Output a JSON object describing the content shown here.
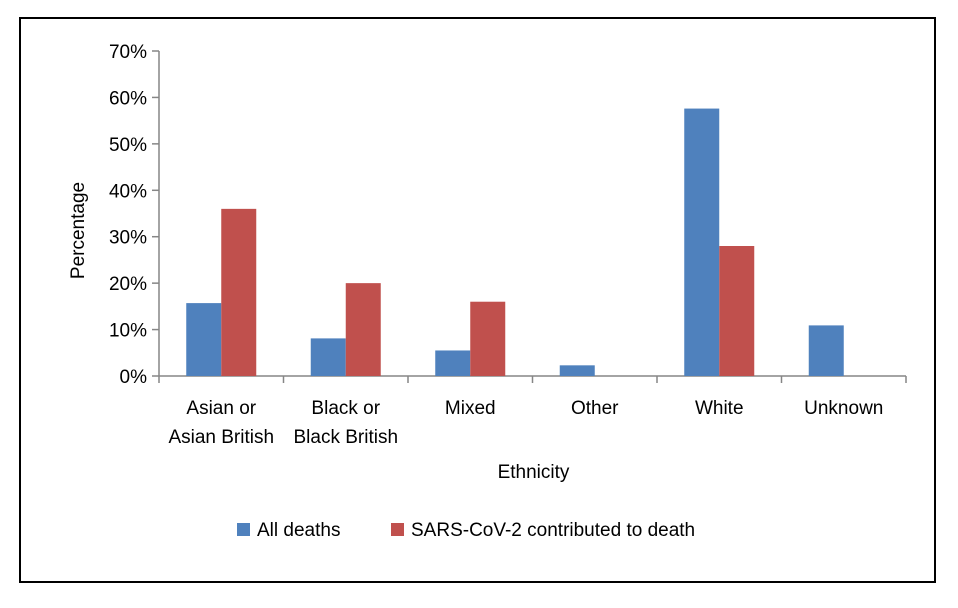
{
  "chart_data": {
    "type": "bar",
    "xlabel": "Ethnicity",
    "ylabel": "Percentage",
    "ylim": [
      0,
      70
    ],
    "y_unit": "%",
    "yticks": [
      0,
      10,
      20,
      30,
      40,
      50,
      60,
      70
    ],
    "ytick_labels": [
      "0%",
      "10%",
      "20%",
      "30%",
      "40%",
      "50%",
      "60%",
      "70%"
    ],
    "categories": [
      [
        "Asian or",
        "Asian British"
      ],
      [
        "Black or",
        "Black British"
      ],
      [
        "Mixed"
      ],
      [
        "Other"
      ],
      [
        "White"
      ],
      [
        "Unknown"
      ]
    ],
    "series": [
      {
        "name": "All deaths",
        "color": "#4F81BD",
        "values": [
          15.7,
          8.1,
          5.5,
          2.3,
          57.6,
          10.9
        ]
      },
      {
        "name": "SARS-CoV-2 contributed to death",
        "color": "#C0504D",
        "values": [
          36.0,
          20.0,
          16.0,
          0,
          28.0,
          0
        ]
      }
    ],
    "grid": false,
    "legend_position": "bottom"
  }
}
